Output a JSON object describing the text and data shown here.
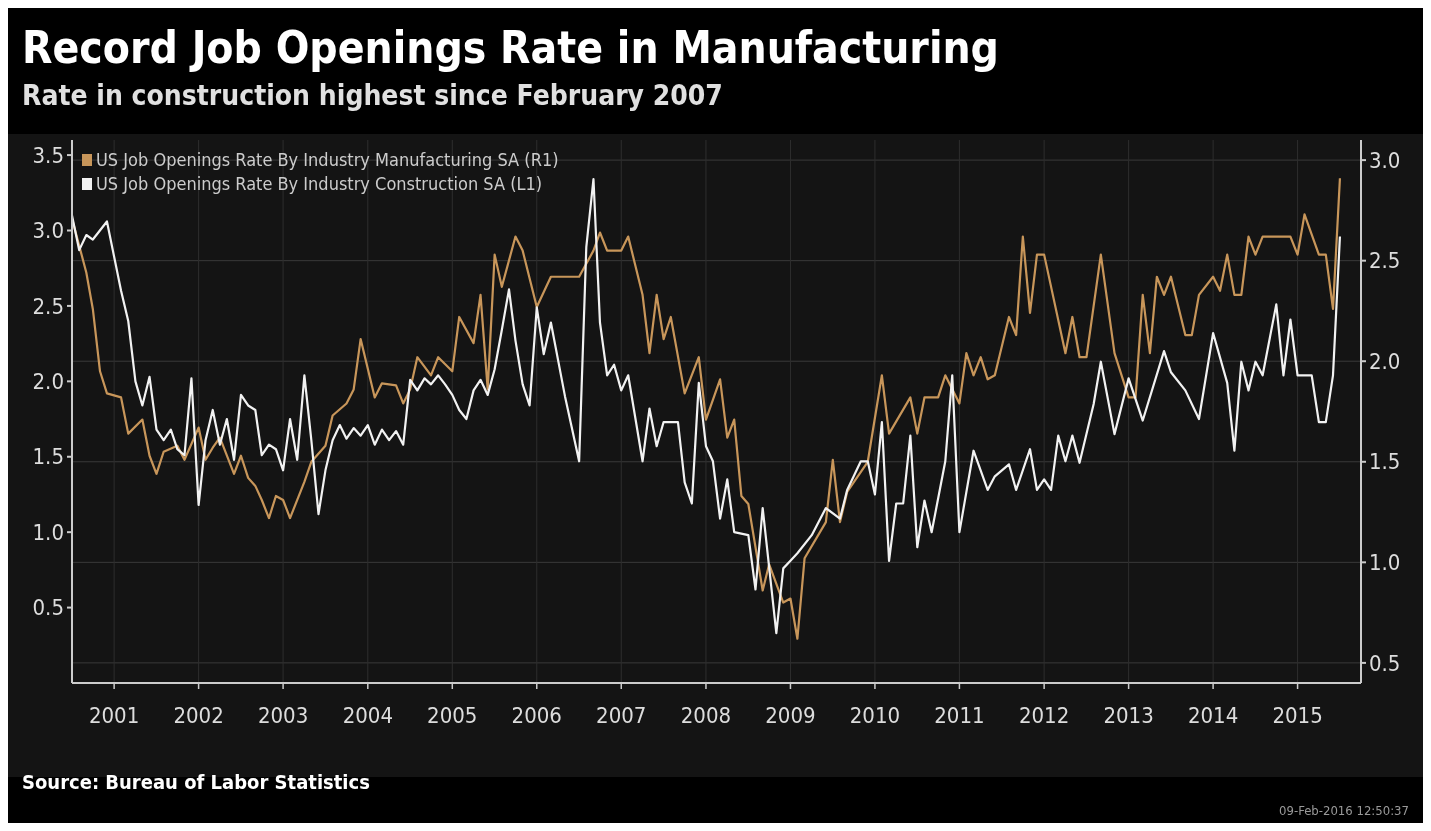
{
  "chart_data": {
    "type": "line",
    "title": "Record Job Openings Rate in Manufacturing",
    "subtitle": "Rate in construction highest since February 2007",
    "xlim": [
      "2000-12",
      "2016-03"
    ],
    "xticks": [
      {
        "value": "2001-06",
        "label": "2001"
      },
      {
        "value": "2002-06",
        "label": "2002"
      },
      {
        "value": "2003-06",
        "label": "2003"
      },
      {
        "value": "2004-06",
        "label": "2004"
      },
      {
        "value": "2005-06",
        "label": "2005"
      },
      {
        "value": "2006-06",
        "label": "2006"
      },
      {
        "value": "2007-06",
        "label": "2007"
      },
      {
        "value": "2008-06",
        "label": "2008"
      },
      {
        "value": "2009-06",
        "label": "2009"
      },
      {
        "value": "2010-06",
        "label": "2010"
      },
      {
        "value": "2011-06",
        "label": "2011"
      },
      {
        "value": "2012-06",
        "label": "2012"
      },
      {
        "value": "2013-06",
        "label": "2013"
      },
      {
        "value": "2014-06",
        "label": "2014"
      },
      {
        "value": "2015-06",
        "label": "2015"
      }
    ],
    "ylim": [
      0,
      3.6
    ],
    "yticks": [
      0.5,
      {
        "value": 1,
        "label": "1.0"
      },
      1.5,
      {
        "value": 2,
        "label": "2.0"
      },
      2.5,
      {
        "value": 3,
        "label": "3.0"
      },
      3.5
    ],
    "y2lim": [
      0.4,
      3.1
    ],
    "y2ticks": [
      0.5,
      {
        "value": 1,
        "label": "1.0"
      },
      1.5,
      {
        "value": 2,
        "label": "2.0"
      },
      2.5,
      {
        "value": 3,
        "label": "3.0"
      }
    ],
    "grid": true,
    "legend": "top left",
    "annotations": [
      "Source: Bureau of Labor Statistics",
      "09-Feb-2016 12:50:37"
    ],
    "series": [
      {
        "name": "US Job Openings Rate By Industry Manufacturing SA  (R1)",
        "color": "#c8965a",
        "axis": "y2",
        "x": [
          "2000-12",
          "2001-02",
          "2001-03",
          "2001-04",
          "2001-05",
          "2001-07",
          "2001-08",
          "2001-10",
          "2001-11",
          "2001-12",
          "2002-01",
          "2002-03",
          "2002-04",
          "2002-06",
          "2002-07",
          "2002-08",
          "2002-09",
          "2002-11",
          "2002-12",
          "2003-01",
          "2003-02",
          "2003-03",
          "2003-04",
          "2003-05",
          "2003-06",
          "2003-07",
          "2003-09",
          "2003-10",
          "2003-12",
          "2004-01",
          "2004-03",
          "2004-04",
          "2004-05",
          "2004-07",
          "2004-08",
          "2004-10",
          "2004-11",
          "2004-12",
          "2005-01",
          "2005-03",
          "2005-04",
          "2005-06",
          "2005-07",
          "2005-09",
          "2005-10",
          "2005-11",
          "2005-12",
          "2006-01",
          "2006-03",
          "2006-04",
          "2006-06",
          "2006-08",
          "2006-12",
          "2007-02",
          "2007-03",
          "2007-04",
          "2007-06",
          "2007-07",
          "2007-09",
          "2007-10",
          "2007-11",
          "2007-12",
          "2008-01",
          "2008-03",
          "2008-05",
          "2008-06",
          "2008-08",
          "2008-09",
          "2008-10",
          "2008-11",
          "2008-12",
          "2009-02",
          "2009-03",
          "2009-05",
          "2009-06",
          "2009-07",
          "2009-08",
          "2009-11",
          "2009-12",
          "2010-01",
          "2010-02",
          "2010-05",
          "2010-07",
          "2010-08",
          "2010-11",
          "2010-12",
          "2011-01",
          "2011-03",
          "2011-04",
          "2011-06",
          "2011-07",
          "2011-08",
          "2011-09",
          "2011-10",
          "2011-11",
          "2012-01",
          "2012-02",
          "2012-03",
          "2012-04",
          "2012-05",
          "2012-06",
          "2012-09",
          "2012-10",
          "2012-11",
          "2012-12",
          "2013-02",
          "2013-04",
          "2013-06",
          "2013-07",
          "2013-08",
          "2013-09",
          "2013-10",
          "2013-11",
          "2013-12",
          "2014-02",
          "2014-03",
          "2014-04",
          "2014-06",
          "2014-07",
          "2014-08",
          "2014-09",
          "2014-10",
          "2014-11",
          "2014-12",
          "2015-01",
          "2015-05",
          "2015-06",
          "2015-07",
          "2015-09",
          "2015-10",
          "2015-11",
          "2015-12"
        ],
        "values": [
          2.71,
          2.44,
          2.26,
          1.95,
          1.84,
          1.82,
          1.64,
          1.71,
          1.53,
          1.44,
          1.55,
          1.58,
          1.51,
          1.67,
          1.51,
          1.57,
          1.62,
          1.44,
          1.53,
          1.42,
          1.38,
          1.31,
          1.22,
          1.33,
          1.31,
          1.22,
          1.4,
          1.5,
          1.58,
          1.73,
          1.79,
          1.86,
          2.11,
          1.82,
          1.89,
          1.88,
          1.79,
          1.86,
          2.02,
          1.93,
          2.02,
          1.95,
          2.22,
          2.09,
          2.33,
          1.86,
          2.53,
          2.37,
          2.62,
          2.55,
          2.27,
          2.42,
          2.42,
          2.55,
          2.64,
          2.55,
          2.55,
          2.62,
          2.33,
          2.04,
          2.33,
          2.11,
          2.22,
          1.84,
          2.02,
          1.71,
          1.91,
          1.62,
          1.71,
          1.33,
          1.29,
          0.86,
          0.99,
          0.8,
          0.82,
          0.62,
          1.02,
          1.2,
          1.51,
          1.2,
          1.35,
          1.5,
          1.93,
          1.64,
          1.82,
          1.64,
          1.82,
          1.82,
          1.93,
          1.79,
          2.04,
          1.93,
          2.02,
          1.91,
          1.93,
          2.22,
          2.13,
          2.62,
          2.24,
          2.53,
          2.53,
          2.04,
          2.22,
          2.02,
          2.02,
          2.53,
          2.04,
          1.82,
          1.82,
          2.33,
          2.04,
          2.42,
          2.33,
          2.42,
          2.13,
          2.13,
          2.33,
          2.42,
          2.35,
          2.53,
          2.33,
          2.33,
          2.62,
          2.53,
          2.62,
          2.62,
          2.53,
          2.73,
          2.53,
          2.53,
          2.26,
          2.91
        ]
      },
      {
        "name": "US Job Openings Rate By Industry Construction SA  (L1)",
        "color": "#f2f2f2",
        "axis": "y",
        "x": [
          "2000-12",
          "2001-01",
          "2001-02",
          "2001-03",
          "2001-05",
          "2001-07",
          "2001-08",
          "2001-09",
          "2001-10",
          "2001-11",
          "2001-12",
          "2002-01",
          "2002-02",
          "2002-03",
          "2002-04",
          "2002-05",
          "2002-06",
          "2002-07",
          "2002-08",
          "2002-09",
          "2002-10",
          "2002-11",
          "2002-12",
          "2003-01",
          "2003-02",
          "2003-03",
          "2003-04",
          "2003-05",
          "2003-06",
          "2003-07",
          "2003-08",
          "2003-09",
          "2003-10",
          "2003-11",
          "2003-12",
          "2004-01",
          "2004-02",
          "2004-03",
          "2004-04",
          "2004-05",
          "2004-06",
          "2004-07",
          "2004-08",
          "2004-09",
          "2004-10",
          "2004-11",
          "2004-12",
          "2005-01",
          "2005-02",
          "2005-03",
          "2005-04",
          "2005-05",
          "2005-06",
          "2005-07",
          "2005-08",
          "2005-09",
          "2005-10",
          "2005-11",
          "2005-12",
          "2006-01",
          "2006-02",
          "2006-03",
          "2006-04",
          "2006-05",
          "2006-06",
          "2006-07",
          "2006-08",
          "2006-10",
          "2006-12",
          "2007-01",
          "2007-02",
          "2007-03",
          "2007-04",
          "2007-05",
          "2007-06",
          "2007-07",
          "2007-09",
          "2007-10",
          "2007-11",
          "2007-12",
          "2008-02",
          "2008-03",
          "2008-04",
          "2008-05",
          "2008-06",
          "2008-07",
          "2008-08",
          "2008-09",
          "2008-10",
          "2008-12",
          "2009-01",
          "2009-02",
          "2009-04",
          "2009-05",
          "2009-06",
          "2009-07",
          "2009-09",
          "2009-11",
          "2010-01",
          "2010-02",
          "2010-04",
          "2010-05",
          "2010-06",
          "2010-07",
          "2010-08",
          "2010-09",
          "2010-10",
          "2010-11",
          "2010-12",
          "2011-01",
          "2011-02",
          "2011-04",
          "2011-05",
          "2011-06",
          "2011-08",
          "2011-10",
          "2011-11",
          "2012-01",
          "2012-02",
          "2012-04",
          "2012-05",
          "2012-06",
          "2012-07",
          "2012-08",
          "2012-09",
          "2012-10",
          "2012-11",
          "2013-01",
          "2013-02",
          "2013-04",
          "2013-06",
          "2013-08",
          "2013-11",
          "2013-12",
          "2014-02",
          "2014-04",
          "2014-06",
          "2014-08",
          "2014-09",
          "2014-10",
          "2014-11",
          "2014-12",
          "2015-01",
          "2015-03",
          "2015-04",
          "2015-05",
          "2015-06",
          "2015-08",
          "2015-09",
          "2015-10",
          "2015-11",
          "2015-12"
        ],
        "values": [
          3.1,
          2.87,
          2.97,
          2.94,
          3.06,
          2.6,
          2.4,
          2.0,
          1.84,
          2.03,
          1.68,
          1.61,
          1.68,
          1.55,
          1.51,
          2.02,
          1.18,
          1.61,
          1.81,
          1.58,
          1.75,
          1.48,
          1.91,
          1.84,
          1.81,
          1.51,
          1.58,
          1.55,
          1.41,
          1.75,
          1.48,
          2.04,
          1.61,
          1.12,
          1.41,
          1.61,
          1.71,
          1.62,
          1.69,
          1.64,
          1.71,
          1.58,
          1.68,
          1.61,
          1.67,
          1.58,
          2.01,
          1.94,
          2.02,
          1.98,
          2.04,
          1.98,
          1.91,
          1.81,
          1.75,
          1.94,
          2.01,
          1.91,
          2.08,
          2.34,
          2.61,
          2.27,
          1.98,
          1.84,
          2.49,
          2.18,
          2.39,
          1.9,
          1.47,
          2.89,
          3.34,
          2.39,
          2.04,
          2.11,
          1.94,
          2.04,
          1.47,
          1.82,
          1.57,
          1.73,
          1.73,
          1.33,
          1.19,
          1.99,
          1.57,
          1.47,
          1.09,
          1.35,
          1.0,
          0.98,
          0.62,
          1.16,
          0.33,
          0.76,
          0.81,
          0.86,
          0.98,
          1.16,
          1.09,
          1.28,
          1.47,
          1.47,
          1.25,
          1.73,
          0.81,
          1.19,
          1.19,
          1.64,
          0.9,
          1.21,
          1.0,
          1.47,
          2.04,
          1.0,
          1.54,
          1.28,
          1.37,
          1.45,
          1.28,
          1.55,
          1.28,
          1.35,
          1.28,
          1.64,
          1.47,
          1.64,
          1.46,
          1.85,
          2.13,
          1.65,
          2.02,
          1.74,
          2.2,
          2.06,
          1.94,
          1.75,
          2.32,
          1.99,
          1.54,
          2.13,
          1.94,
          2.13,
          2.04,
          2.51,
          2.04,
          2.41,
          2.04,
          2.04,
          1.73,
          1.73,
          2.04,
          2.96
        ]
      }
    ]
  }
}
